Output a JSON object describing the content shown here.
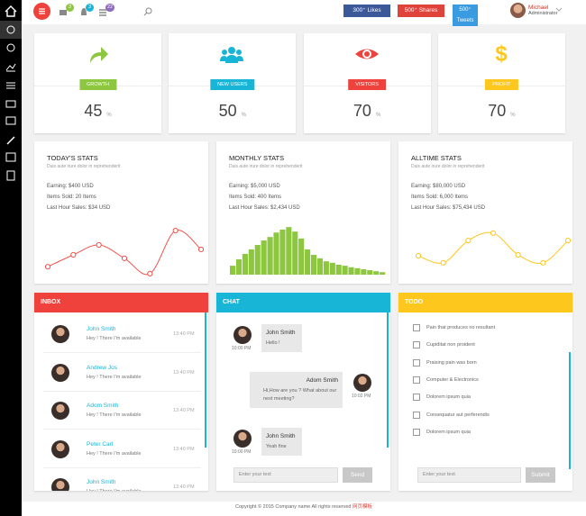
{
  "header": {
    "badges": [
      "3",
      "3",
      "22"
    ],
    "likes": "300⁺ Likes",
    "shares": "500⁺ Shares",
    "tweets": "500⁺ Tweets",
    "user": {
      "name": "Michael",
      "role": "Administrator"
    }
  },
  "kpis": [
    {
      "label": "GROWTH",
      "value": 45,
      "unit": "%",
      "color": "#8dc63f"
    },
    {
      "label": "NEW USERS",
      "value": 50,
      "unit": "%",
      "color": "#19b5d6"
    },
    {
      "label": "VISITORS",
      "value": 70,
      "unit": "%",
      "color": "#f0423c"
    },
    {
      "label": "PROFIT",
      "value": 70,
      "unit": "%",
      "color": "#fdc71d"
    }
  ],
  "stats": [
    {
      "title": "TODAY'S STATS",
      "subtitle": "Duis aute irure dolor in reprehenderit",
      "lines": [
        "Earning: $400 USD",
        "Items Sold: 20 Items",
        "Last Hour Sales: $34 USD"
      ],
      "chart": {
        "type": "line",
        "color": "#f0524b",
        "values": [
          16,
          40,
          60,
          33,
          2,
          89,
          51
        ]
      }
    },
    {
      "title": "MONTHLY STATS",
      "subtitle": "Duis aute irure dolor in reprehenderit",
      "lines": [
        "Earning: $5,000 USD",
        "Items Sold: 400 Items",
        "Last Hour Sales: $2,434 USD"
      ],
      "chart": {
        "type": "bar",
        "color": "#8dc63f",
        "values": [
          18,
          31,
          42,
          51,
          60,
          69,
          76,
          85,
          91,
          96,
          87,
          73,
          51,
          40,
          33,
          27,
          24,
          20,
          18,
          15,
          13,
          11,
          9,
          7,
          5
        ]
      }
    },
    {
      "title": "ALLTIME STATS",
      "subtitle": "Duis aute irure dolor in reprehenderit",
      "lines": [
        "Earning: $80,000 USD",
        "Items Sold: 6,000 Items",
        "Last Hour Sales: $75,434 USD"
      ],
      "chart": {
        "type": "line",
        "color": "#fdc71d",
        "values": [
          38,
          24,
          69,
          84,
          40,
          24,
          69
        ]
      }
    }
  ],
  "inbox": {
    "title": "INBOX",
    "color": "#f0423c",
    "messages": [
      {
        "name": "John Smith",
        "text": "Hey ! There I'm available",
        "time": "13:40 PM"
      },
      {
        "name": "Andrew Jos",
        "text": "Hey ! There I'm available",
        "time": "13:40 PM"
      },
      {
        "name": "Adom Smith",
        "text": "Hey ! There I'm available",
        "time": "13:40 PM"
      },
      {
        "name": "Peter Carl",
        "text": "Hey ! There I'm available",
        "time": "13:40 PM"
      },
      {
        "name": "John Smith",
        "text": "Hey ! There I'm available",
        "time": "13:40 PM"
      }
    ]
  },
  "chat": {
    "title": "CHAT",
    "color": "#19b5d6",
    "messages": [
      {
        "name": "John Smith",
        "text": "Hello !",
        "time": "10:00 PM",
        "side": "left"
      },
      {
        "name": "Adom Smith",
        "text": "Hi,How are you ? What about our next meeting?",
        "time": "10:02 PM",
        "side": "right"
      },
      {
        "name": "John Smith",
        "text": "Yeah fine",
        "time": "10:00 PM",
        "side": "left"
      }
    ],
    "placeholder": "Enter your text",
    "button": "Send"
  },
  "todo": {
    "title": "TODO",
    "color": "#fdc71d",
    "items": [
      "Pain that produces no resultant",
      "Cupiditat non proident",
      "Praising pain was born",
      "Computer & Electronics",
      "Dolorem ipsum quia",
      "Consequatur aut perferendis",
      "Dolorem ipsum quia"
    ],
    "placeholder": "Enter your text",
    "button": "Submit"
  },
  "footer": {
    "text": "Copyright © 2015 Company name All rights reserved",
    "link": "网页模板"
  }
}
